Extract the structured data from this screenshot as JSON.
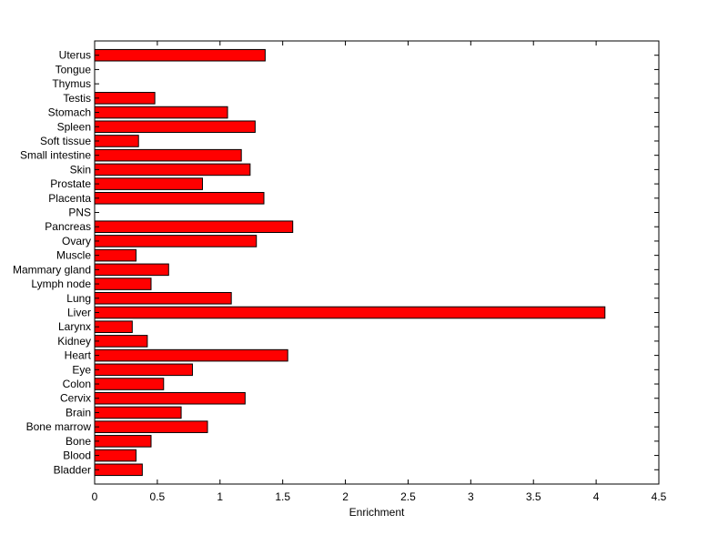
{
  "chart_data": {
    "type": "bar",
    "orientation": "horizontal",
    "title": "",
    "xlabel": "Enrichment",
    "ylabel": "",
    "xlim": [
      0,
      4.5
    ],
    "xticks": [
      0,
      0.5,
      1,
      1.5,
      2,
      2.5,
      3,
      3.5,
      4,
      4.5
    ],
    "xtick_labels": [
      "0",
      "0.5",
      "1",
      "1.5",
      "2",
      "2.5",
      "3",
      "3.5",
      "4",
      "4.5"
    ],
    "grid": false,
    "legend": "none",
    "bar_color": "#ff0000",
    "bar_edge_color": "#000000",
    "categories": [
      "Bladder",
      "Blood",
      "Bone",
      "Bone marrow",
      "Brain",
      "Cervix",
      "Colon",
      "Eye",
      "Heart",
      "Kidney",
      "Larynx",
      "Liver",
      "Lung",
      "Lymph node",
      "Mammary gland",
      "Muscle",
      "Ovary",
      "Pancreas",
      "PNS",
      "Placenta",
      "Prostate",
      "Skin",
      "Small intestine",
      "Soft tissue",
      "Spleen",
      "Stomach",
      "Testis",
      "Thymus",
      "Tongue",
      "Uterus"
    ],
    "values": [
      0.38,
      0.33,
      0.45,
      0.9,
      0.69,
      1.2,
      0.55,
      0.78,
      1.54,
      0.42,
      0.3,
      4.07,
      1.09,
      0.45,
      0.59,
      0.33,
      1.29,
      1.58,
      0,
      1.35,
      0.86,
      1.24,
      1.17,
      0.35,
      1.28,
      1.06,
      0.48,
      0,
      0,
      1.36
    ]
  }
}
